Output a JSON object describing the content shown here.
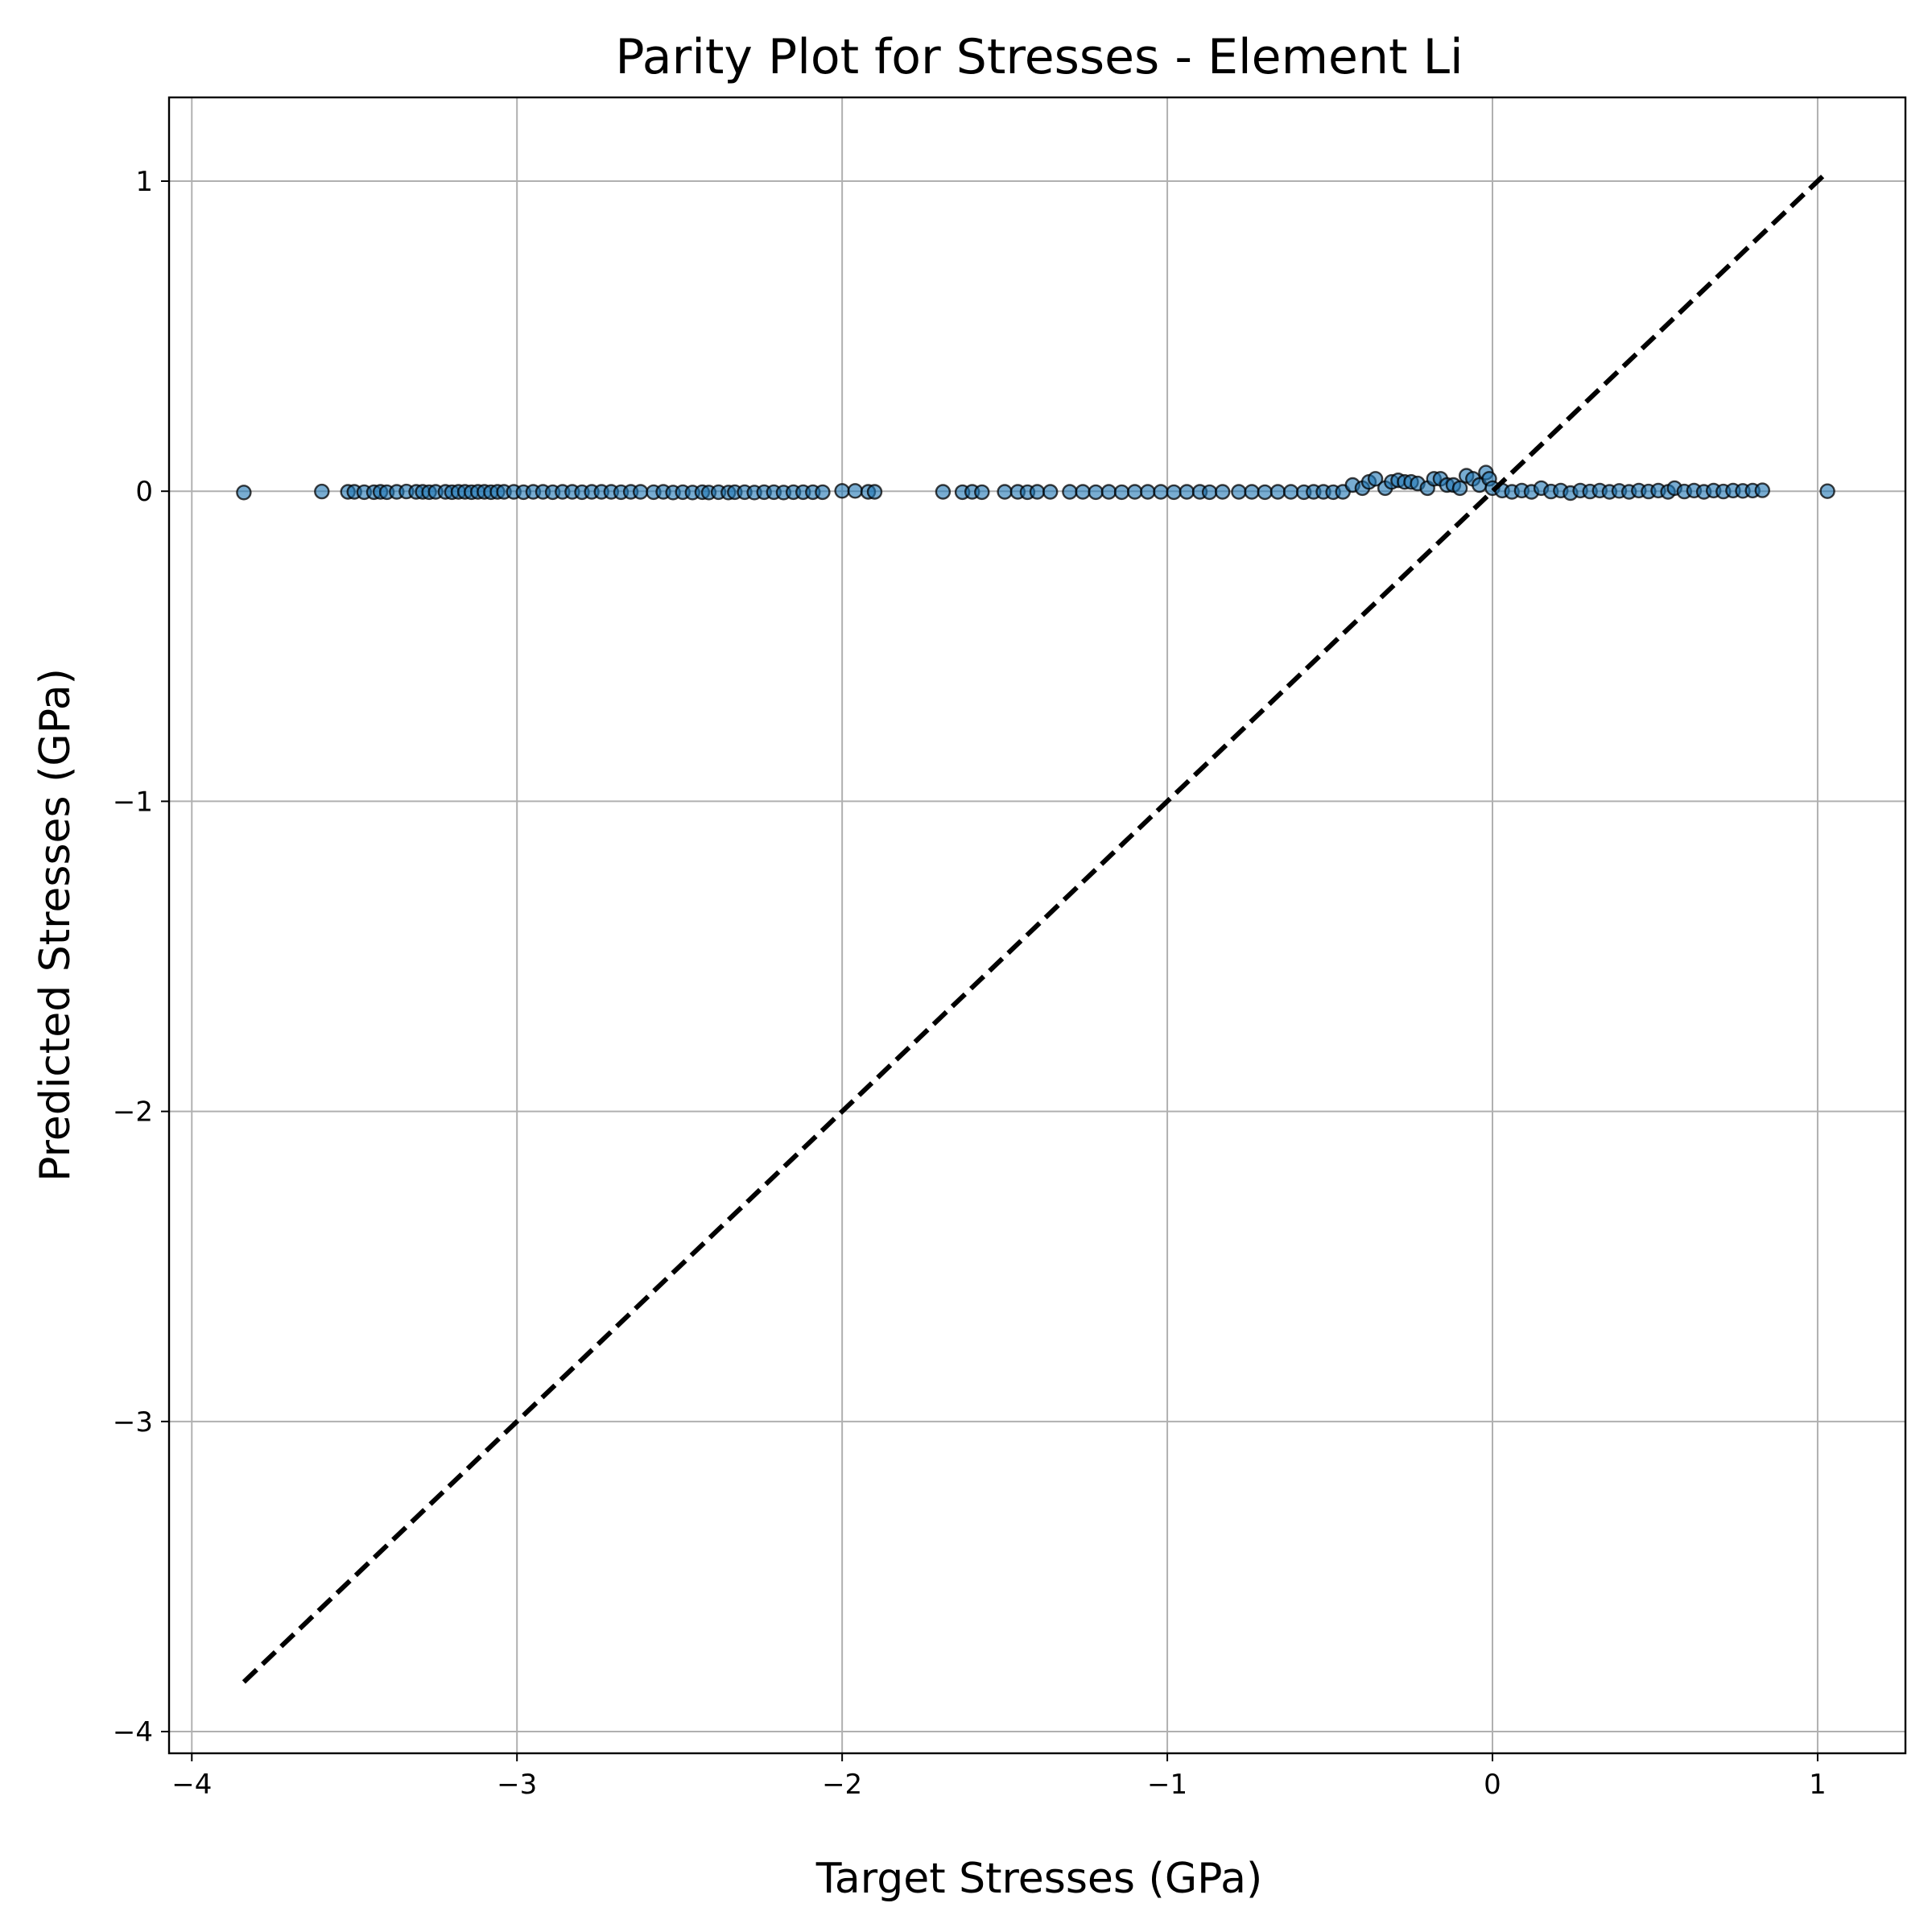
{
  "chart_data": {
    "type": "scatter",
    "title": "Parity Plot for Stresses - Element Li",
    "xlabel": "Target Stresses (GPa)",
    "ylabel": "Predicted Stresses (GPa)",
    "xlim": [
      -4.07,
      1.27
    ],
    "ylim": [
      -4.07,
      1.27
    ],
    "xticks": [
      -4,
      -3,
      -2,
      -1,
      0,
      1
    ],
    "yticks": [
      -4,
      -3,
      -2,
      -1,
      0,
      1
    ],
    "xtick_labels": [
      "−4",
      "−3",
      "−2",
      "−1",
      "0",
      "1"
    ],
    "ytick_labels": [
      "−4",
      "−3",
      "−2",
      "−1",
      "0",
      "1"
    ],
    "grid": true,
    "legend": "none",
    "marker_color": "#1f77b4",
    "marker_edge_color": "#000000",
    "parity_line": {
      "from": [
        -3.84,
        -3.84
      ],
      "to": [
        1.03,
        1.03
      ],
      "style": "dashed",
      "color": "#000000"
    },
    "series": [
      {
        "points": [
          [
            -3.84,
            -0.004
          ],
          [
            -3.6,
            -0.001
          ],
          [
            -3.52,
            -0.002
          ],
          [
            -3.5,
            -0.002
          ],
          [
            -3.47,
            -0.003
          ],
          [
            -3.44,
            -0.003
          ],
          [
            -3.42,
            -0.002
          ],
          [
            -3.4,
            -0.003
          ],
          [
            -3.37,
            -0.002
          ],
          [
            -3.34,
            -0.001
          ],
          [
            -3.31,
            -0.002
          ],
          [
            -3.29,
            -0.002
          ],
          [
            -3.27,
            -0.003
          ],
          [
            -3.25,
            -0.002
          ],
          [
            -3.22,
            -0.002
          ],
          [
            -3.2,
            -0.003
          ],
          [
            -3.18,
            -0.002
          ],
          [
            -3.16,
            -0.002
          ],
          [
            -3.14,
            -0.003
          ],
          [
            -3.12,
            -0.002
          ],
          [
            -3.1,
            -0.002
          ],
          [
            -3.08,
            -0.003
          ],
          [
            -3.06,
            -0.002
          ],
          [
            -3.04,
            -0.002
          ],
          [
            -3.01,
            -0.002
          ],
          [
            -2.98,
            -0.003
          ],
          [
            -2.95,
            -0.002
          ],
          [
            -2.92,
            -0.002
          ],
          [
            -2.89,
            -0.003
          ],
          [
            -2.86,
            -0.002
          ],
          [
            -2.83,
            -0.002
          ],
          [
            -2.8,
            -0.003
          ],
          [
            -2.77,
            -0.002
          ],
          [
            -2.74,
            -0.002
          ],
          [
            -2.71,
            -0.002
          ],
          [
            -2.68,
            -0.003
          ],
          [
            -2.65,
            -0.002
          ],
          [
            -2.62,
            -0.002
          ],
          [
            -2.58,
            -0.003
          ],
          [
            -2.55,
            -0.002
          ],
          [
            -2.52,
            -0.004
          ],
          [
            -2.49,
            -0.003
          ],
          [
            -2.46,
            -0.004
          ],
          [
            -2.43,
            -0.003
          ],
          [
            -2.41,
            -0.004
          ],
          [
            -2.38,
            -0.003
          ],
          [
            -2.35,
            -0.004
          ],
          [
            -2.33,
            -0.003
          ],
          [
            -2.3,
            -0.003
          ],
          [
            -2.27,
            -0.004
          ],
          [
            -2.24,
            -0.003
          ],
          [
            -2.21,
            -0.003
          ],
          [
            -2.18,
            -0.004
          ],
          [
            -2.15,
            -0.003
          ],
          [
            -2.12,
            -0.003
          ],
          [
            -2.09,
            -0.003
          ],
          [
            -2.06,
            -0.003
          ],
          [
            -2.0,
            0.001
          ],
          [
            -1.96,
            0.001
          ],
          [
            -1.92,
            -0.002
          ],
          [
            -1.9,
            -0.002
          ],
          [
            -1.69,
            -0.002
          ],
          [
            -1.63,
            -0.003
          ],
          [
            -1.6,
            -0.002
          ],
          [
            -1.57,
            -0.003
          ],
          [
            -1.5,
            -0.002
          ],
          [
            -1.46,
            -0.002
          ],
          [
            -1.43,
            -0.003
          ],
          [
            -1.4,
            -0.002
          ],
          [
            -1.36,
            -0.002
          ],
          [
            -1.3,
            -0.002
          ],
          [
            -1.26,
            -0.002
          ],
          [
            -1.22,
            -0.003
          ],
          [
            -1.18,
            -0.002
          ],
          [
            -1.14,
            -0.003
          ],
          [
            -1.1,
            -0.002
          ],
          [
            -1.06,
            -0.002
          ],
          [
            -1.02,
            -0.002
          ],
          [
            -0.98,
            -0.003
          ],
          [
            -0.94,
            -0.002
          ],
          [
            -0.9,
            -0.002
          ],
          [
            -0.87,
            -0.003
          ],
          [
            -0.83,
            -0.002
          ],
          [
            -0.78,
            -0.002
          ],
          [
            -0.74,
            -0.002
          ],
          [
            -0.7,
            -0.003
          ],
          [
            -0.66,
            -0.002
          ],
          [
            -0.62,
            -0.002
          ],
          [
            -0.58,
            -0.003
          ],
          [
            -0.55,
            -0.002
          ],
          [
            -0.52,
            -0.002
          ],
          [
            -0.49,
            -0.003
          ],
          [
            -0.46,
            -0.002
          ],
          [
            -0.43,
            0.02
          ],
          [
            -0.4,
            0.01
          ],
          [
            -0.38,
            0.03
          ],
          [
            -0.36,
            0.04
          ],
          [
            -0.33,
            0.01
          ],
          [
            -0.31,
            0.03
          ],
          [
            -0.29,
            0.035
          ],
          [
            -0.27,
            0.03
          ],
          [
            -0.25,
            0.03
          ],
          [
            -0.23,
            0.025
          ],
          [
            -0.2,
            0.01
          ],
          [
            -0.18,
            0.04
          ],
          [
            -0.16,
            0.04
          ],
          [
            -0.14,
            0.02
          ],
          [
            -0.12,
            0.02
          ],
          [
            -0.1,
            0.01
          ],
          [
            -0.08,
            0.05
          ],
          [
            -0.06,
            0.04
          ],
          [
            -0.04,
            0.02
          ],
          [
            -0.02,
            0.06
          ],
          [
            -0.01,
            0.04
          ],
          [
            0.0,
            0.01
          ],
          [
            0.03,
            0.002
          ],
          [
            0.06,
            -0.002
          ],
          [
            0.09,
            0.002
          ],
          [
            0.12,
            -0.002
          ],
          [
            0.15,
            0.01
          ],
          [
            0.18,
            -0.001
          ],
          [
            0.21,
            0.002
          ],
          [
            0.24,
            -0.006
          ],
          [
            0.27,
            0.002
          ],
          [
            0.3,
            -0.001
          ],
          [
            0.33,
            0.002
          ],
          [
            0.36,
            -0.002
          ],
          [
            0.39,
            0.001
          ],
          [
            0.42,
            -0.002
          ],
          [
            0.45,
            0.002
          ],
          [
            0.48,
            -0.001
          ],
          [
            0.51,
            0.002
          ],
          [
            0.54,
            -0.002
          ],
          [
            0.56,
            0.01
          ],
          [
            0.59,
            -0.001
          ],
          [
            0.62,
            0.002
          ],
          [
            0.65,
            -0.002
          ],
          [
            0.68,
            0.002
          ],
          [
            0.71,
            -0.001
          ],
          [
            0.74,
            0.002
          ],
          [
            0.77,
            0.001
          ],
          [
            0.8,
            0.002
          ],
          [
            0.83,
            0.003
          ],
          [
            1.03,
            0.0
          ]
        ]
      }
    ]
  }
}
